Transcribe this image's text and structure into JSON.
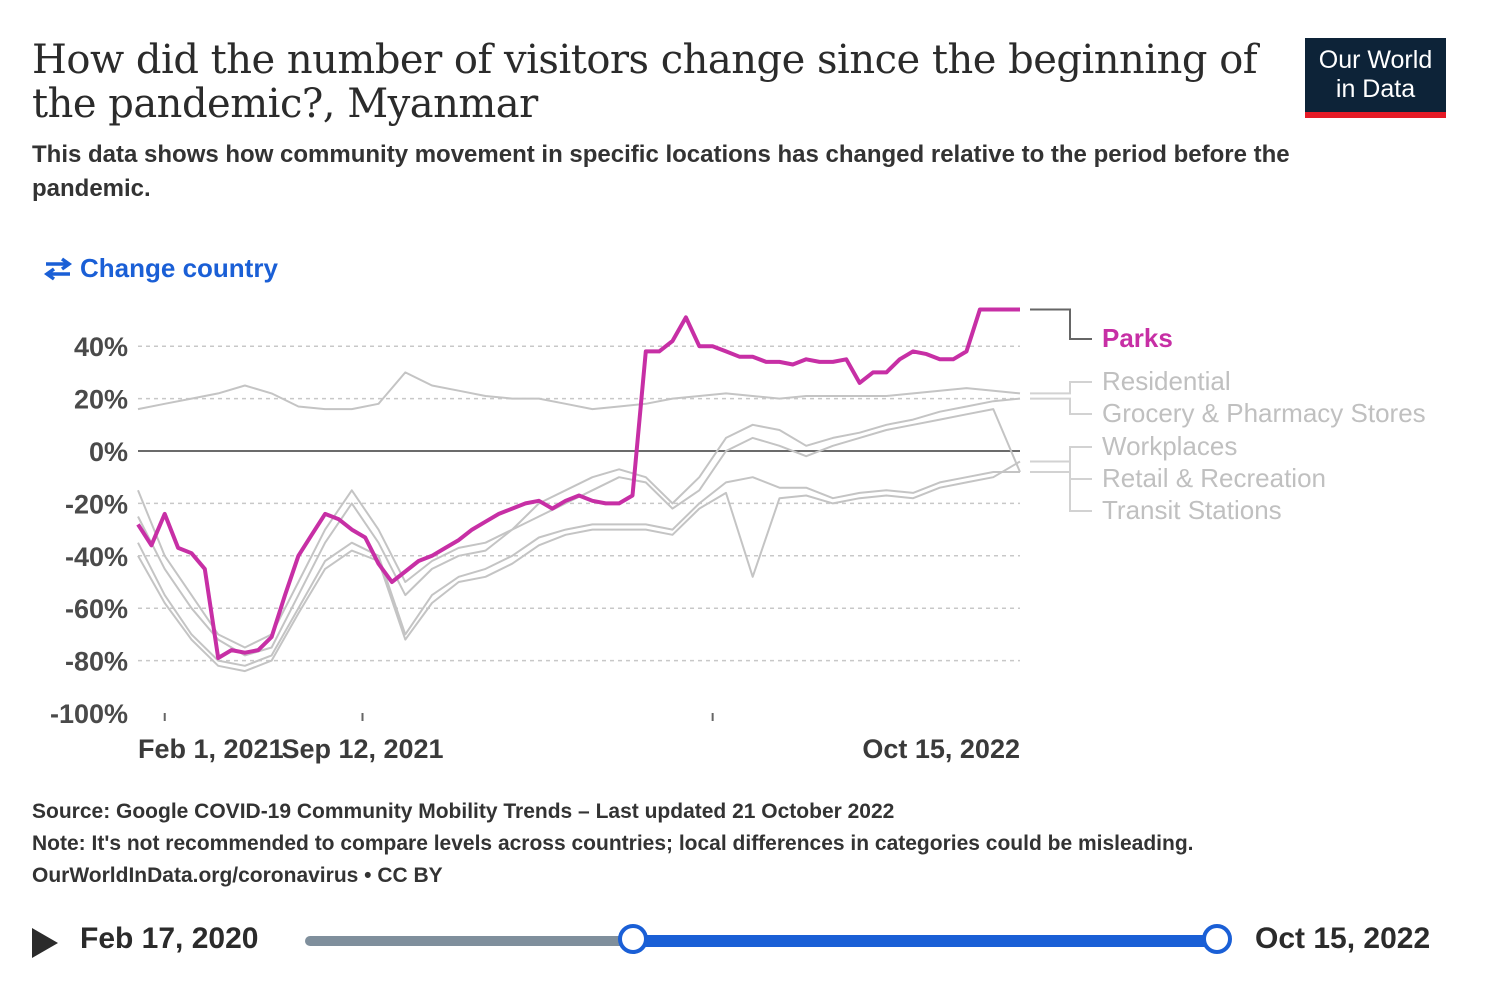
{
  "header": {
    "title": "How did the number of visitors change since the beginning of the pandemic?, Myanmar",
    "subtitle": "This data shows how community movement in specific locations has changed relative to the period before the pandemic.",
    "logo_line1": "Our World",
    "logo_line2": "in Data",
    "change_country": "Change country"
  },
  "colors": {
    "parks": "#c72fa5",
    "others": "#c4c4c4",
    "accent": "#1a5fd6",
    "logo_bg": "#0d2338",
    "logo_bar": "#e51a26"
  },
  "chart_data": {
    "type": "line",
    "title": "How did the number of visitors change since the beginning of the pandemic?, Myanmar",
    "ylim": [
      -100,
      50
    ],
    "yticks": [
      -100,
      -80,
      -60,
      -40,
      -20,
      0,
      20,
      40
    ],
    "ytick_labels": [
      "-100%",
      "-80%",
      "-60%",
      "-40%",
      "-20%",
      "0%",
      "20%",
      "40%"
    ],
    "xrange_months": [
      0,
      33
    ],
    "xticks": [
      {
        "month": 1,
        "label": "Feb 1, 2021"
      },
      {
        "month": 8.4,
        "label": "Sep 12, 2021"
      },
      {
        "month": 21.5,
        "label": "Oct 15, 2022"
      }
    ],
    "series": [
      {
        "name": "Parks",
        "highlight": true,
        "x": [
          0,
          0.5,
          1,
          1.5,
          2,
          2.5,
          3,
          3.5,
          4,
          4.5,
          5,
          5.5,
          6,
          6.5,
          7,
          7.5,
          8,
          8.5,
          9,
          9.5,
          10,
          10.5,
          11,
          11.5,
          12,
          12.5,
          13,
          13.5,
          14,
          14.5,
          15,
          15.5,
          16,
          16.5,
          17,
          17.5,
          18,
          18.5,
          19,
          19.5,
          20,
          20.5,
          21,
          21.5,
          22,
          22.5,
          23,
          23.5,
          24,
          24.5,
          25,
          25.5,
          26,
          26.5,
          27,
          27.5,
          28,
          28.5,
          29,
          29.5,
          30,
          30.5,
          31,
          31.5,
          32,
          32.5,
          33
        ],
        "values": [
          -28,
          -36,
          -24,
          -37,
          -39,
          -45,
          -79,
          -76,
          -77,
          -76,
          -71,
          -55,
          -40,
          -32,
          -24,
          -26,
          -30,
          -33,
          -43,
          -50,
          -46,
          -42,
          -40,
          -37,
          -34,
          -30,
          -27,
          -24,
          -22,
          -20,
          -19,
          -22,
          -19,
          -17,
          -19,
          -20,
          -20,
          -17,
          38,
          38,
          42,
          51,
          40,
          40,
          38,
          36,
          36,
          34,
          34,
          33,
          35,
          34,
          34,
          35,
          26,
          30,
          30,
          35,
          38,
          37,
          35,
          35,
          38,
          54,
          54,
          54,
          54
        ]
      },
      {
        "name": "Residential",
        "x": [
          0,
          1,
          2,
          3,
          4,
          5,
          6,
          7,
          8,
          9,
          10,
          11,
          12,
          13,
          14,
          15,
          16,
          17,
          18,
          19,
          20,
          21,
          22,
          23,
          24,
          25,
          26,
          27,
          28,
          29,
          30,
          31,
          32,
          33
        ],
        "values": [
          16,
          18,
          20,
          22,
          25,
          22,
          17,
          16,
          16,
          18,
          30,
          25,
          23,
          21,
          20,
          20,
          18,
          16,
          17,
          18,
          20,
          21,
          22,
          21,
          20,
          21,
          21,
          21,
          21,
          22,
          23,
          24,
          23,
          22
        ]
      },
      {
        "name": "Grocery & Pharmacy Stores",
        "x": [
          0,
          1,
          2,
          3,
          4,
          5,
          6,
          7,
          8,
          9,
          10,
          11,
          12,
          13,
          14,
          15,
          16,
          17,
          18,
          19,
          20,
          21,
          22,
          23,
          24,
          25,
          26,
          27,
          28,
          29,
          30,
          31,
          32,
          33
        ],
        "values": [
          -15,
          -40,
          -55,
          -70,
          -75,
          -70,
          -50,
          -30,
          -15,
          -30,
          -50,
          -42,
          -37,
          -35,
          -30,
          -20,
          -15,
          -10,
          -7,
          -10,
          -20,
          -10,
          5,
          10,
          8,
          2,
          5,
          7,
          10,
          12,
          15,
          17,
          19,
          20
        ]
      },
      {
        "name": "Workplaces",
        "x": [
          0,
          1,
          2,
          3,
          4,
          5,
          6,
          7,
          8,
          9,
          10,
          11,
          12,
          13,
          14,
          15,
          16,
          17,
          18,
          19,
          20,
          21,
          22,
          23,
          24,
          25,
          26,
          27,
          28,
          29,
          30,
          31,
          32,
          33
        ],
        "values": [
          -25,
          -45,
          -60,
          -72,
          -78,
          -75,
          -55,
          -35,
          -20,
          -35,
          -55,
          -45,
          -40,
          -38,
          -30,
          -25,
          -20,
          -15,
          -10,
          -12,
          -22,
          -15,
          0,
          5,
          2,
          -2,
          2,
          5,
          8,
          10,
          12,
          14,
          16,
          -8
        ]
      },
      {
        "name": "Retail & Recreation",
        "x": [
          0,
          1,
          2,
          3,
          4,
          5,
          6,
          7,
          8,
          9,
          10,
          11,
          12,
          13,
          14,
          15,
          16,
          17,
          18,
          19,
          20,
          21,
          22,
          23,
          24,
          25,
          26,
          27,
          28,
          29,
          30,
          31,
          32,
          33
        ],
        "values": [
          -35,
          -55,
          -70,
          -80,
          -82,
          -78,
          -60,
          -42,
          -35,
          -40,
          -70,
          -55,
          -48,
          -45,
          -40,
          -33,
          -30,
          -28,
          -28,
          -28,
          -30,
          -20,
          -12,
          -10,
          -14,
          -14,
          -18,
          -16,
          -15,
          -16,
          -12,
          -10,
          -8,
          -8
        ]
      },
      {
        "name": "Transit Stations",
        "x": [
          0,
          1,
          2,
          3,
          4,
          5,
          6,
          7,
          8,
          9,
          10,
          11,
          12,
          13,
          14,
          15,
          16,
          17,
          18,
          19,
          20,
          21,
          22,
          23,
          24,
          25,
          26,
          27,
          28,
          29,
          30,
          31,
          32,
          33
        ],
        "values": [
          -40,
          -58,
          -72,
          -82,
          -84,
          -80,
          -62,
          -45,
          -38,
          -42,
          -72,
          -58,
          -50,
          -48,
          -43,
          -36,
          -32,
          -30,
          -30,
          -30,
          -32,
          -22,
          -16,
          -48,
          -18,
          -17,
          -20,
          -18,
          -17,
          -18,
          -14,
          -12,
          -10,
          -4
        ]
      }
    ],
    "legend": [
      "Parks",
      "Residential",
      "Grocery & Pharmacy Stores",
      "Workplaces",
      "Retail & Recreation",
      "Transit Stations"
    ],
    "legend_placement": "right"
  },
  "footer": {
    "source": "Source: Google COVID-19 Community Mobility Trends – Last updated 21 October 2022",
    "note": "Note: It's not recommended to compare levels across countries; local differences in categories could be misleading.",
    "link": "OurWorldInData.org/coronavirus • CC BY"
  },
  "timeline": {
    "start_date": "Feb 17, 2020",
    "end_date": "Oct 15, 2022",
    "selected_start_fraction": 0.36,
    "selected_end_fraction": 1.0
  }
}
